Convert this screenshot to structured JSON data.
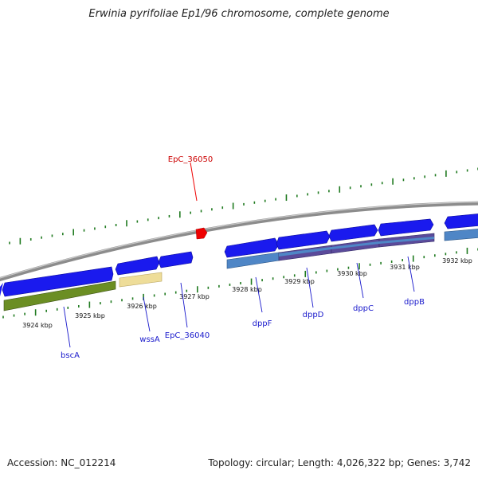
{
  "title": "Erwinia pyrifoliae Ep1/96 chromosome, complete genome",
  "footer": {
    "accession": "Accession: NC_012214",
    "summary": "Topology: circular; Length: 4,026,322 bp; Genes: 3,742"
  },
  "colors": {
    "backbone": "#8c8c8c",
    "cds_forward": "#1a1aee",
    "tick_marks": "#1f7a1f",
    "gene_label": "#1a1acc",
    "highlight_label": "#cc0000",
    "highlight_marker": "#ee0000",
    "track_olive": "#6b8e23",
    "track_khaki": "#eedd99",
    "track_steelblue": "#4f86c6",
    "track_purple": "#5a4a9a"
  },
  "tick_labels": [
    "3924 kbp",
    "3925 kbp",
    "3926 kbp",
    "3927 kbp",
    "3928 kbp",
    "3929 kbp",
    "3930 kbp",
    "3931 kbp",
    "3932 kbp"
  ],
  "gene_labels": [
    "bscA",
    "wssA",
    "EpC_36040",
    "dppF",
    "dppD",
    "dppC",
    "dppB"
  ],
  "highlight_label": "EpC_36050"
}
